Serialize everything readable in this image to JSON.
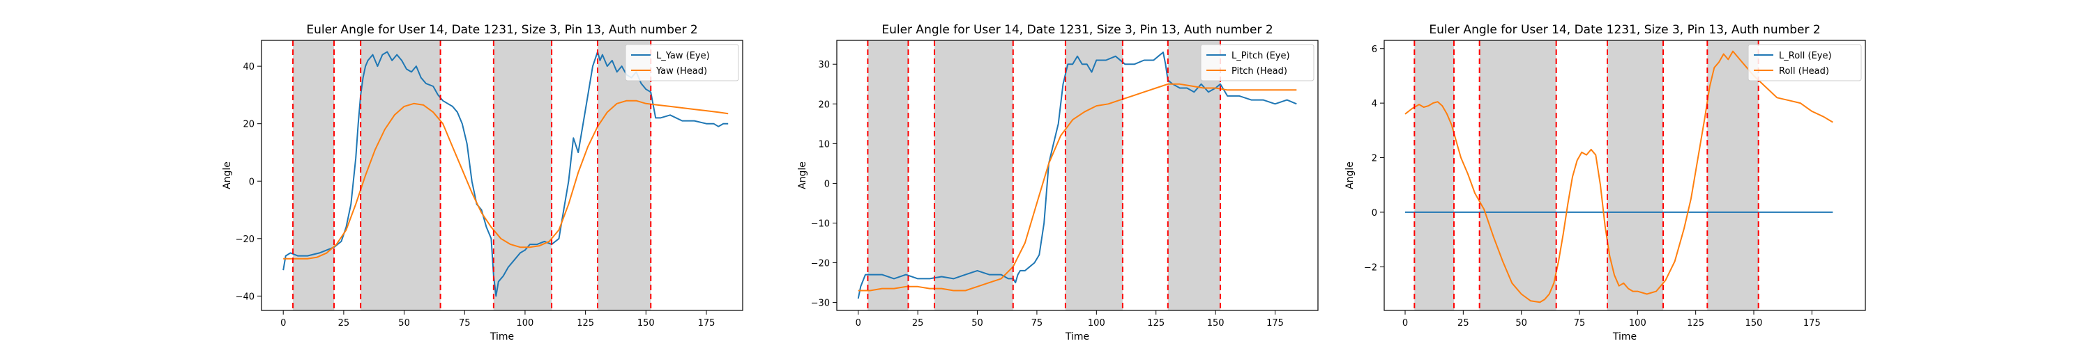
{
  "chart_data": [
    {
      "type": "line",
      "title": "Euler Angle for User 14, Date 1231, Size 3, Pin 13, Auth number 2",
      "xlabel": "Time",
      "ylabel": "Angle",
      "xlim": [
        -9,
        190
      ],
      "ylim": [
        -45,
        49
      ],
      "xticks": [
        0,
        25,
        50,
        75,
        100,
        125,
        150,
        175
      ],
      "yticks": [
        -40,
        -20,
        0,
        20,
        40
      ],
      "legend": "top-right",
      "shaded_spans": [
        [
          4,
          21
        ],
        [
          32,
          65
        ],
        [
          87,
          111
        ],
        [
          130,
          152
        ]
      ],
      "vlines": [
        4,
        21,
        32,
        65,
        87,
        111,
        130,
        152
      ],
      "series": [
        {
          "name": "L_Yaw (Eye)",
          "color": "#1f77b4",
          "x": [
            0,
            1,
            3,
            6,
            10,
            15,
            18,
            21,
            24,
            26,
            28,
            30,
            31,
            32,
            33,
            34,
            35,
            37,
            39,
            41,
            43,
            45,
            47,
            49,
            51,
            53,
            55,
            57,
            59,
            62,
            64,
            66,
            68,
            70,
            72,
            74,
            76,
            78,
            80,
            82,
            84,
            86,
            87,
            88,
            89,
            91,
            93,
            95,
            98,
            100,
            102,
            105,
            108,
            111,
            114,
            116,
            118,
            120,
            122,
            124,
            126,
            128,
            130,
            131,
            132,
            134,
            136,
            138,
            140,
            142,
            144,
            146,
            148,
            150,
            152,
            154,
            156,
            160,
            165,
            170,
            175,
            178,
            180,
            182,
            184
          ],
          "values": [
            -31,
            -26,
            -25,
            -26,
            -26,
            -25,
            -24,
            -23,
            -21,
            -16,
            -8,
            8,
            20,
            30,
            36,
            40,
            42,
            44,
            40,
            44,
            45,
            42,
            44,
            42,
            39,
            38,
            40,
            36,
            34,
            33,
            30,
            28,
            27,
            26,
            24,
            20,
            13,
            0,
            -8,
            -10,
            -16,
            -20,
            -33,
            -40,
            -35,
            -33,
            -30,
            -28,
            -25,
            -24,
            -22,
            -22,
            -21,
            -22,
            -20,
            -10,
            0,
            15,
            10,
            20,
            30,
            40,
            45,
            42,
            44,
            40,
            42,
            38,
            40,
            37,
            36,
            38,
            34,
            32,
            31,
            22,
            22,
            23,
            21,
            21,
            20,
            20,
            19,
            20,
            20
          ]
        },
        {
          "name": "Yaw (Head)",
          "color": "#ff7f0e",
          "x": [
            0,
            3,
            6,
            10,
            14,
            18,
            22,
            26,
            30,
            34,
            38,
            42,
            46,
            50,
            54,
            58,
            62,
            66,
            70,
            74,
            78,
            82,
            86,
            90,
            94,
            98,
            102,
            106,
            110,
            114,
            118,
            122,
            126,
            130,
            134,
            138,
            142,
            146,
            150,
            155,
            160,
            165,
            170,
            175,
            180,
            184
          ],
          "values": [
            -27,
            -27,
            -27,
            -27,
            -26.5,
            -25,
            -22,
            -17,
            -8,
            2,
            11,
            18,
            23,
            26,
            27,
            26.5,
            24,
            20,
            12,
            4,
            -4,
            -11,
            -16,
            -20,
            -22,
            -23,
            -23,
            -22.5,
            -21,
            -17,
            -8,
            3,
            12,
            19,
            24,
            27,
            28,
            28,
            27,
            26.5,
            26,
            25.5,
            25,
            24.5,
            24,
            23.5
          ]
        }
      ]
    },
    {
      "type": "line",
      "title": "Euler Angle for User 14, Date 1231, Size 3, Pin 13, Auth number 2",
      "xlabel": "Time",
      "ylabel": "Angle",
      "xlim": [
        -9,
        193
      ],
      "ylim": [
        -32,
        36
      ],
      "xticks": [
        0,
        25,
        50,
        75,
        100,
        125,
        150,
        175
      ],
      "yticks": [
        -30,
        -20,
        -10,
        0,
        10,
        20,
        30
      ],
      "legend": "top-right",
      "shaded_spans": [
        [
          4,
          21
        ],
        [
          32,
          65
        ],
        [
          87,
          111
        ],
        [
          130,
          152
        ]
      ],
      "vlines": [
        4,
        21,
        32,
        65,
        87,
        111,
        130,
        152
      ],
      "series": [
        {
          "name": "L_Pitch (Eye)",
          "color": "#1f77b4",
          "x": [
            0,
            1,
            3,
            6,
            10,
            15,
            20,
            25,
            30,
            35,
            40,
            45,
            50,
            55,
            60,
            63,
            65,
            66,
            67,
            68,
            70,
            72,
            74,
            76,
            78,
            80,
            82,
            84,
            86,
            88,
            90,
            92,
            94,
            96,
            98,
            100,
            104,
            108,
            112,
            116,
            120,
            124,
            126,
            128,
            129,
            130,
            132,
            135,
            138,
            141,
            144,
            147,
            150,
            152,
            155,
            160,
            165,
            170,
            175,
            180,
            184
          ],
          "values": [
            -29,
            -26,
            -23,
            -23,
            -23,
            -24,
            -23,
            -24,
            -24,
            -23.5,
            -24,
            -23,
            -22,
            -23,
            -23,
            -24,
            -24,
            -25,
            -23,
            -22,
            -22,
            -21,
            -20,
            -18,
            -10,
            5,
            10,
            15,
            25,
            30,
            30,
            32,
            30,
            30,
            28,
            31,
            31,
            32,
            30,
            30,
            31,
            31,
            32,
            33,
            30,
            26,
            25,
            24,
            24,
            23,
            25,
            23,
            24,
            25,
            22,
            22,
            21,
            21,
            20,
            21,
            20
          ]
        },
        {
          "name": "Pitch (Head)",
          "color": "#ff7f0e",
          "x": [
            0,
            5,
            10,
            15,
            20,
            25,
            30,
            35,
            40,
            45,
            50,
            55,
            60,
            65,
            70,
            75,
            80,
            85,
            90,
            95,
            100,
            105,
            110,
            115,
            120,
            125,
            130,
            135,
            140,
            145,
            150,
            155,
            160,
            165,
            170,
            175,
            180,
            184
          ],
          "values": [
            -27,
            -27,
            -26.5,
            -26.5,
            -26,
            -26,
            -26.5,
            -26.5,
            -27,
            -27,
            -26,
            -25,
            -24,
            -21,
            -15,
            -5,
            5,
            12,
            16,
            18,
            19.5,
            20,
            21,
            22,
            23,
            24,
            25,
            25,
            24.5,
            24,
            24,
            23.5,
            23.5,
            23.5,
            23.5,
            23.5,
            23.5,
            23.5
          ]
        }
      ]
    },
    {
      "type": "line",
      "title": "Euler Angle for User 14, Date 1231, Size 3, Pin 13, Auth number 2",
      "xlabel": "Time",
      "ylabel": "Angle",
      "xlim": [
        -9,
        198
      ],
      "ylim": [
        -3.6,
        6.3
      ],
      "xticks": [
        0,
        25,
        50,
        75,
        100,
        125,
        150,
        175
      ],
      "yticks": [
        -2,
        0,
        2,
        4,
        6
      ],
      "legend": "top-right",
      "shaded_spans": [
        [
          4,
          21
        ],
        [
          32,
          65
        ],
        [
          87,
          111
        ],
        [
          130,
          152
        ]
      ],
      "vlines": [
        4,
        21,
        32,
        65,
        87,
        111,
        130,
        152
      ],
      "series": [
        {
          "name": "L_Roll (Eye)",
          "color": "#1f77b4",
          "x": [
            0,
            184
          ],
          "values": [
            0,
            0
          ]
        },
        {
          "name": "Roll (Head)",
          "color": "#ff7f0e",
          "x": [
            0,
            3,
            6,
            8,
            10,
            12,
            14,
            16,
            18,
            20,
            22,
            24,
            27,
            30,
            34,
            38,
            42,
            46,
            50,
            54,
            58,
            60,
            62,
            64,
            66,
            68,
            70,
            72,
            74,
            76,
            78,
            80,
            82,
            84,
            86,
            88,
            90,
            92,
            94,
            96,
            98,
            100,
            104,
            108,
            112,
            116,
            120,
            123,
            126,
            129,
            131,
            133,
            135,
            137,
            139,
            141,
            143,
            145,
            147,
            150,
            155,
            160,
            165,
            170,
            175,
            180,
            184
          ],
          "values": [
            3.6,
            3.8,
            3.95,
            3.85,
            3.9,
            4.0,
            4.05,
            3.9,
            3.6,
            3.2,
            2.6,
            2.0,
            1.4,
            0.7,
            0.1,
            -0.9,
            -1.8,
            -2.6,
            -3.0,
            -3.25,
            -3.3,
            -3.2,
            -3.0,
            -2.6,
            -1.8,
            -0.8,
            0.3,
            1.3,
            1.9,
            2.2,
            2.1,
            2.3,
            2.1,
            1.0,
            -0.5,
            -1.6,
            -2.3,
            -2.7,
            -2.6,
            -2.8,
            -2.9,
            -2.9,
            -3.0,
            -2.9,
            -2.5,
            -1.8,
            -0.6,
            0.5,
            2.0,
            3.5,
            4.6,
            5.3,
            5.5,
            5.8,
            5.6,
            5.9,
            5.7,
            5.5,
            5.3,
            5.0,
            4.6,
            4.2,
            4.1,
            4.0,
            3.7,
            3.5,
            3.3
          ]
        }
      ]
    }
  ]
}
